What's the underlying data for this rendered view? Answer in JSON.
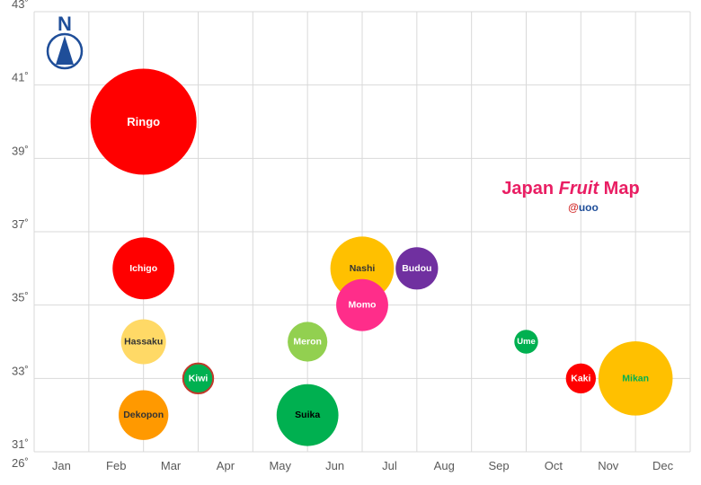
{
  "chart_data": {
    "type": "bubble",
    "title_parts": [
      "Japan ",
      "Fruit",
      " Map"
    ],
    "subtitle_parts": [
      "@",
      "uoo"
    ],
    "title_color": "#E91E63",
    "subtitle_colors": [
      "#D32F2F",
      "#1F4E99"
    ],
    "compass_letter": "N",
    "compass_color": "#1F4E99",
    "xlabel": "",
    "ylabel": "",
    "x_categories": [
      "Jan",
      "Feb",
      "Mar",
      "Apr",
      "May",
      "Jun",
      "Jul",
      "Aug",
      "Sep",
      "Oct",
      "Nov",
      "Dec"
    ],
    "x_range": [
      0,
      12
    ],
    "y_range": [
      31,
      43
    ],
    "y_ticks": [
      31,
      33,
      35,
      37,
      39,
      41,
      43
    ],
    "y_tick_suffix": "˚",
    "corner_label": "26˚",
    "grid": true,
    "points": [
      {
        "name": "Ringo",
        "x": 2.0,
        "y": 40,
        "size": 100,
        "color": "#FF0000",
        "text_color": "#FFFFFF"
      },
      {
        "name": "Ichigo",
        "x": 2.0,
        "y": 36,
        "size": 34,
        "color": "#FF0000",
        "text_color": "#FFFFFF"
      },
      {
        "name": "Hassaku",
        "x": 2.0,
        "y": 34,
        "size": 18,
        "color": "#FFD966",
        "text_color": "#333333"
      },
      {
        "name": "Dekopon",
        "x": 2.0,
        "y": 32,
        "size": 22,
        "color": "#FF9900",
        "text_color": "#333333"
      },
      {
        "name": "Kiwi",
        "x": 3.0,
        "y": 33,
        "size": 8,
        "color": "#00B050",
        "text_color": "#FFFFFF",
        "stroke": "#C0392B"
      },
      {
        "name": "Meron",
        "x": 5.0,
        "y": 34,
        "size": 14,
        "color": "#92D050",
        "text_color": "#FFFFFF"
      },
      {
        "name": "Suika",
        "x": 5.0,
        "y": 32,
        "size": 34,
        "color": "#00B050",
        "text_color": "#000000"
      },
      {
        "name": "Nashi",
        "x": 6.0,
        "y": 36,
        "size": 36,
        "color": "#FFC000",
        "text_color": "#333333"
      },
      {
        "name": "Momo",
        "x": 6.0,
        "y": 35,
        "size": 24,
        "color": "#FF2D8A",
        "text_color": "#FFFFFF"
      },
      {
        "name": "Budou",
        "x": 7.0,
        "y": 36,
        "size": 16,
        "color": "#7030A0",
        "text_color": "#FFFFFF"
      },
      {
        "name": "Ume",
        "x": 9.0,
        "y": 34,
        "size": 5,
        "color": "#00B050",
        "text_color": "#FFFFFF"
      },
      {
        "name": "Kaki",
        "x": 10.0,
        "y": 33,
        "size": 8,
        "color": "#FF0000",
        "text_color": "#FFFFFF"
      },
      {
        "name": "Mikan",
        "x": 11.0,
        "y": 33,
        "size": 49,
        "color": "#FFC000",
        "text_color": "#00B050"
      }
    ]
  }
}
